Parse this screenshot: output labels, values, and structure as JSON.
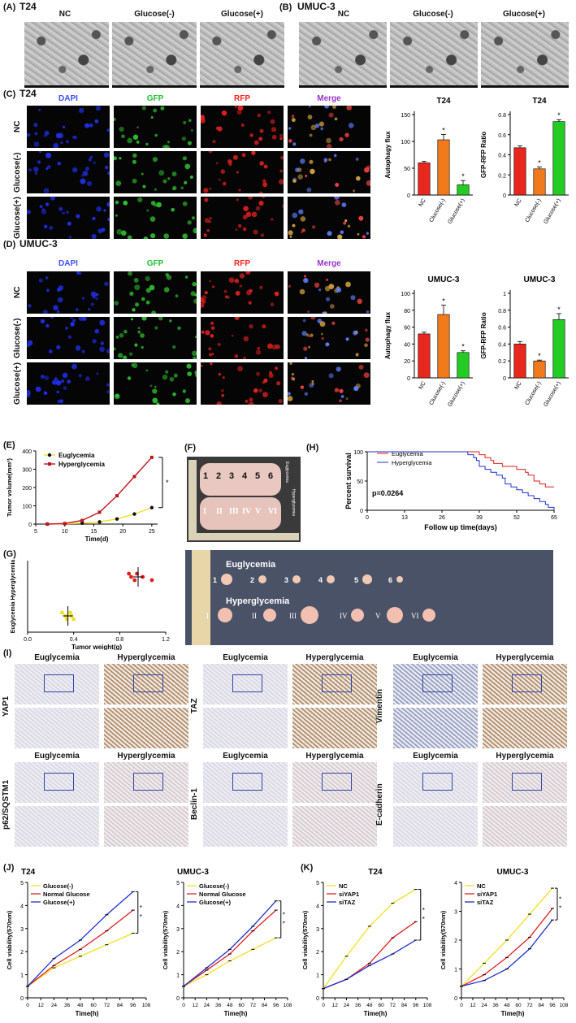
{
  "panels": {
    "A": {
      "label": "(A)",
      "title": "T24",
      "cols": [
        "NC",
        "Glucose(-)",
        "Glucose(+)"
      ]
    },
    "B": {
      "label": "(B)",
      "title": "UMUC-3",
      "cols": [
        "NC",
        "Glucose(-)",
        "Glucose(+)"
      ]
    },
    "C": {
      "label": "(C)",
      "title": "T24",
      "cols": [
        "DAPI",
        "GFP",
        "RFP",
        "Merge"
      ],
      "rows": [
        "NC",
        "Glucose(-)",
        "Glucose(+)"
      ]
    },
    "D": {
      "label": "(D)",
      "title": "UMUC-3",
      "cols": [
        "DAPI",
        "GFP",
        "RFP",
        "Merge"
      ],
      "rows": [
        "NC",
        "Glucose(-)",
        "Glucose(+)"
      ]
    },
    "E": {
      "label": "(E)"
    },
    "F": {
      "label": "(F)",
      "numbers": [
        "1",
        "2",
        "3",
        "4",
        "5",
        "6"
      ],
      "romans": [
        "I",
        "II",
        "III",
        "IV",
        "V",
        "VI"
      ],
      "side_top": "Euglycemia",
      "side_bottom": "Hyperglycemia"
    },
    "G": {
      "label": "(G)",
      "photo_eu": "Euglycemia",
      "photo_hy": "Hyperglycemia",
      "numbers": [
        "1",
        "2",
        "3",
        "4",
        "5",
        "6"
      ],
      "romans": [
        "I",
        "II",
        "III",
        "IV",
        "V",
        "VI"
      ]
    },
    "H": {
      "label": "(H)"
    },
    "I": {
      "label": "(I)",
      "groups": [
        {
          "marker": "YAP1",
          "a": "Euglycemia",
          "b": "Hyperglycemia"
        },
        {
          "marker": "TAZ",
          "a": "Euglycemia",
          "b": "Hyperglycemia"
        },
        {
          "marker": "Vimentin",
          "a": "Euglycemia",
          "b": "Hyperglycemia"
        },
        {
          "marker": "p62/SQSTM1",
          "a": "Euglycemia",
          "b": "Hyperglycemia"
        },
        {
          "marker": "Beclin-1",
          "a": "Euglycemia",
          "b": "Hyperglycemia"
        },
        {
          "marker": "E-cadherin",
          "a": "Euglycemia",
          "b": "Hyperglycemia"
        }
      ]
    },
    "J": {
      "label": "(J)"
    },
    "K": {
      "label": "(K)"
    }
  },
  "chart_data": [
    {
      "id": "C-flux",
      "type": "bar",
      "title": "T24",
      "ylabel": "Autophagy flux",
      "categories": [
        "NC",
        "Clucose(-)",
        "Glucose(+)"
      ],
      "values": [
        60,
        103,
        19
      ],
      "errors": [
        3,
        10,
        8
      ],
      "ylim": [
        0,
        150
      ],
      "yticks": [
        0,
        50,
        100,
        150
      ],
      "stars": [
        "",
        "*",
        "*"
      ],
      "colors": [
        "#e8281e",
        "#f07a1c",
        "#22cc22"
      ]
    },
    {
      "id": "C-ratio",
      "type": "bar",
      "title": "T24",
      "ylabel": "GFP-RFP Ratio",
      "categories": [
        "NC",
        "Clucose(-)",
        "Glucose(+)"
      ],
      "values": [
        0.47,
        0.26,
        0.73
      ],
      "errors": [
        0.02,
        0.02,
        0.02
      ],
      "ylim": [
        0,
        0.8
      ],
      "yticks": [
        0.0,
        0.2,
        0.4,
        0.6,
        0.8
      ],
      "stars": [
        "",
        "*",
        "*"
      ],
      "colors": [
        "#e8281e",
        "#f07a1c",
        "#22cc22"
      ]
    },
    {
      "id": "D-flux",
      "type": "bar",
      "title": "UMUC-3",
      "ylabel": "Autophagy flux",
      "categories": [
        "NC",
        "Clucose(-)",
        "Glucose(+)"
      ],
      "values": [
        52,
        75,
        30
      ],
      "errors": [
        2,
        11,
        2
      ],
      "ylim": [
        0,
        100
      ],
      "yticks": [
        0,
        20,
        40,
        60,
        80,
        100
      ],
      "stars": [
        "",
        "*",
        "*"
      ],
      "colors": [
        "#e8281e",
        "#f07a1c",
        "#22cc22"
      ]
    },
    {
      "id": "D-ratio",
      "type": "bar",
      "title": "UMUC-3",
      "ylabel": "GFP-RFP Ratio",
      "categories": [
        "NC",
        "Clucose(-)",
        "Glucose(+)"
      ],
      "values": [
        0.4,
        0.2,
        0.69
      ],
      "errors": [
        0.03,
        0.01,
        0.07
      ],
      "ylim": [
        0,
        1.0
      ],
      "yticks": [
        0.0,
        0.2,
        0.4,
        0.6,
        0.8,
        1.0
      ],
      "stars": [
        "",
        "*",
        "*"
      ],
      "colors": [
        "#e8281e",
        "#f07a1c",
        "#22cc22"
      ]
    },
    {
      "id": "E",
      "type": "line",
      "xlabel": "Time(d)",
      "ylabel": "Tumor volume(mm³)",
      "x": [
        7,
        10,
        13,
        16,
        19,
        22,
        25
      ],
      "xlim": [
        5,
        26
      ],
      "xticks": [
        5,
        10,
        15,
        20,
        25
      ],
      "ylim": [
        0,
        400
      ],
      "yticks": [
        0,
        100,
        200,
        300,
        400
      ],
      "series": [
        {
          "name": "Euglycemia",
          "values": [
            0,
            2,
            5,
            12,
            28,
            55,
            90
          ],
          "color": "#f0e020",
          "marker": "circle"
        },
        {
          "name": "Hyperglycemia",
          "values": [
            0,
            3,
            20,
            65,
            155,
            260,
            365
          ],
          "color": "#c0141e",
          "marker": "square"
        }
      ],
      "sig": "*"
    },
    {
      "id": "G",
      "type": "scatter",
      "xlabel": "Tumor weight(g)",
      "ylabel": "Euglycemia Hyperglycemia",
      "xlim": [
        0,
        1.2
      ],
      "xticks": [
        0.0,
        0.4,
        0.8,
        1.2
      ],
      "series": [
        {
          "name": "Euglycemia",
          "values": [
            0.3,
            0.33,
            0.34,
            0.37,
            0.38,
            0.4
          ],
          "mean": 0.35,
          "color": "#f0e020"
        },
        {
          "name": "Hyperglycemia",
          "values": [
            0.88,
            0.9,
            0.93,
            0.95,
            1.0,
            1.08
          ],
          "mean": 0.96,
          "color": "#e01e1e"
        }
      ]
    },
    {
      "id": "H",
      "type": "line",
      "xlabel": "Follow up time(days)",
      "ylabel": "Percent survival",
      "xticks": [
        0,
        13,
        26,
        39,
        52,
        65
      ],
      "xlim": [
        0,
        65
      ],
      "ylim": [
        0,
        100
      ],
      "yticks": [
        0,
        50,
        100
      ],
      "annotation": "p=0.0264",
      "series": [
        {
          "name": "Euglycemia",
          "color": "#e01e1e",
          "steps": [
            [
              0,
              100
            ],
            [
              37,
              100
            ],
            [
              39,
              95
            ],
            [
              41,
              90
            ],
            [
              43,
              85
            ],
            [
              44,
              80
            ],
            [
              46,
              80
            ],
            [
              47,
              75
            ],
            [
              50,
              75
            ],
            [
              52,
              70
            ],
            [
              55,
              65
            ],
            [
              56,
              60
            ],
            [
              58,
              50
            ],
            [
              60,
              45
            ],
            [
              62,
              40
            ],
            [
              65,
              40
            ]
          ]
        },
        {
          "name": "Hyperglycemia",
          "color": "#2030d0",
          "steps": [
            [
              0,
              100
            ],
            [
              33,
              100
            ],
            [
              35,
              95
            ],
            [
              37,
              90
            ],
            [
              38,
              85
            ],
            [
              39,
              75
            ],
            [
              41,
              70
            ],
            [
              43,
              65
            ],
            [
              45,
              60
            ],
            [
              47,
              55
            ],
            [
              48,
              45
            ],
            [
              50,
              40
            ],
            [
              52,
              35
            ],
            [
              54,
              30
            ],
            [
              56,
              25
            ],
            [
              58,
              20
            ],
            [
              60,
              15
            ],
            [
              62,
              10
            ],
            [
              63,
              5
            ],
            [
              65,
              0
            ]
          ]
        }
      ]
    },
    {
      "id": "J-T24",
      "type": "line",
      "title": "T24",
      "xlabel": "Time(h)",
      "ylabel": "Cell viability(570nm)",
      "x": [
        0,
        24,
        48,
        72,
        96
      ],
      "xlim": [
        0,
        108
      ],
      "xticks": [
        0,
        12,
        24,
        36,
        48,
        60,
        72,
        84,
        96,
        108
      ],
      "ylim": [
        0,
        5
      ],
      "yticks": [
        0,
        1,
        2,
        3,
        4,
        5
      ],
      "series": [
        {
          "name": "Glucose(-)",
          "values": [
            0.5,
            1.3,
            1.8,
            2.3,
            2.8
          ],
          "color": "#f0e020"
        },
        {
          "name": "Normal Glucose",
          "values": [
            0.5,
            1.4,
            2.1,
            2.9,
            3.8
          ],
          "color": "#e01e1e"
        },
        {
          "name": "Glucose(+)",
          "values": [
            0.5,
            1.7,
            2.5,
            3.6,
            4.6
          ],
          "color": "#2030d0"
        }
      ],
      "sig": "*"
    },
    {
      "id": "J-UMUC",
      "type": "line",
      "title": "UMUC-3",
      "xlabel": "Time(h)",
      "ylabel": "Cell viability(570nm)",
      "x": [
        0,
        24,
        48,
        72,
        96
      ],
      "xlim": [
        0,
        108
      ],
      "xticks": [
        0,
        12,
        24,
        36,
        48,
        60,
        72,
        84,
        96,
        108
      ],
      "ylim": [
        0,
        5
      ],
      "yticks": [
        0,
        1,
        2,
        3,
        4,
        5
      ],
      "series": [
        {
          "name": "Glucose(-)",
          "values": [
            0.5,
            1.0,
            1.6,
            2.1,
            2.6
          ],
          "color": "#f0e020"
        },
        {
          "name": "Normal Glucose",
          "values": [
            0.5,
            1.2,
            1.9,
            2.9,
            3.8
          ],
          "color": "#e01e1e"
        },
        {
          "name": "Glucose(+)",
          "values": [
            0.5,
            1.3,
            2.1,
            3.1,
            4.2
          ],
          "color": "#2030d0"
        }
      ],
      "sig": "*"
    },
    {
      "id": "K-T24",
      "type": "line",
      "title": "T24",
      "xlabel": "Time(h)",
      "ylabel": "Cell viability(570nm)",
      "x": [
        0,
        24,
        48,
        72,
        96
      ],
      "xlim": [
        0,
        108
      ],
      "xticks": [
        0,
        12,
        24,
        36,
        48,
        60,
        72,
        84,
        96,
        108
      ],
      "ylim": [
        0,
        5
      ],
      "yticks": [
        0,
        1,
        2,
        3,
        4,
        5
      ],
      "series": [
        {
          "name": "NC",
          "values": [
            0.4,
            1.8,
            3.1,
            4.1,
            4.7
          ],
          "color": "#f0e020"
        },
        {
          "name": "siYAP1",
          "values": [
            0.4,
            0.8,
            1.5,
            2.6,
            3.3
          ],
          "color": "#e01e1e"
        },
        {
          "name": "siTAZ",
          "values": [
            0.4,
            0.8,
            1.4,
            1.9,
            2.5
          ],
          "color": "#2030d0"
        }
      ],
      "sig": "*"
    },
    {
      "id": "K-UMUC",
      "type": "line",
      "title": "UMUC-3",
      "xlabel": "Time(h)",
      "ylabel": "Cell viability(570nm)",
      "x": [
        0,
        24,
        48,
        72,
        96
      ],
      "xlim": [
        0,
        108
      ],
      "xticks": [
        0,
        12,
        24,
        36,
        48,
        60,
        72,
        84,
        96,
        108
      ],
      "ylim": [
        0,
        4
      ],
      "yticks": [
        0,
        1,
        2,
        3,
        4
      ],
      "series": [
        {
          "name": "NC",
          "values": [
            0.4,
            1.2,
            2.0,
            2.9,
            3.8
          ],
          "color": "#f0e020"
        },
        {
          "name": "siYAP1",
          "values": [
            0.4,
            0.8,
            1.4,
            2.1,
            3.1
          ],
          "color": "#e01e1e"
        },
        {
          "name": "siTAZ",
          "values": [
            0.4,
            0.6,
            1.0,
            1.7,
            2.7
          ],
          "color": "#2030d0"
        }
      ],
      "sig": "*"
    }
  ]
}
